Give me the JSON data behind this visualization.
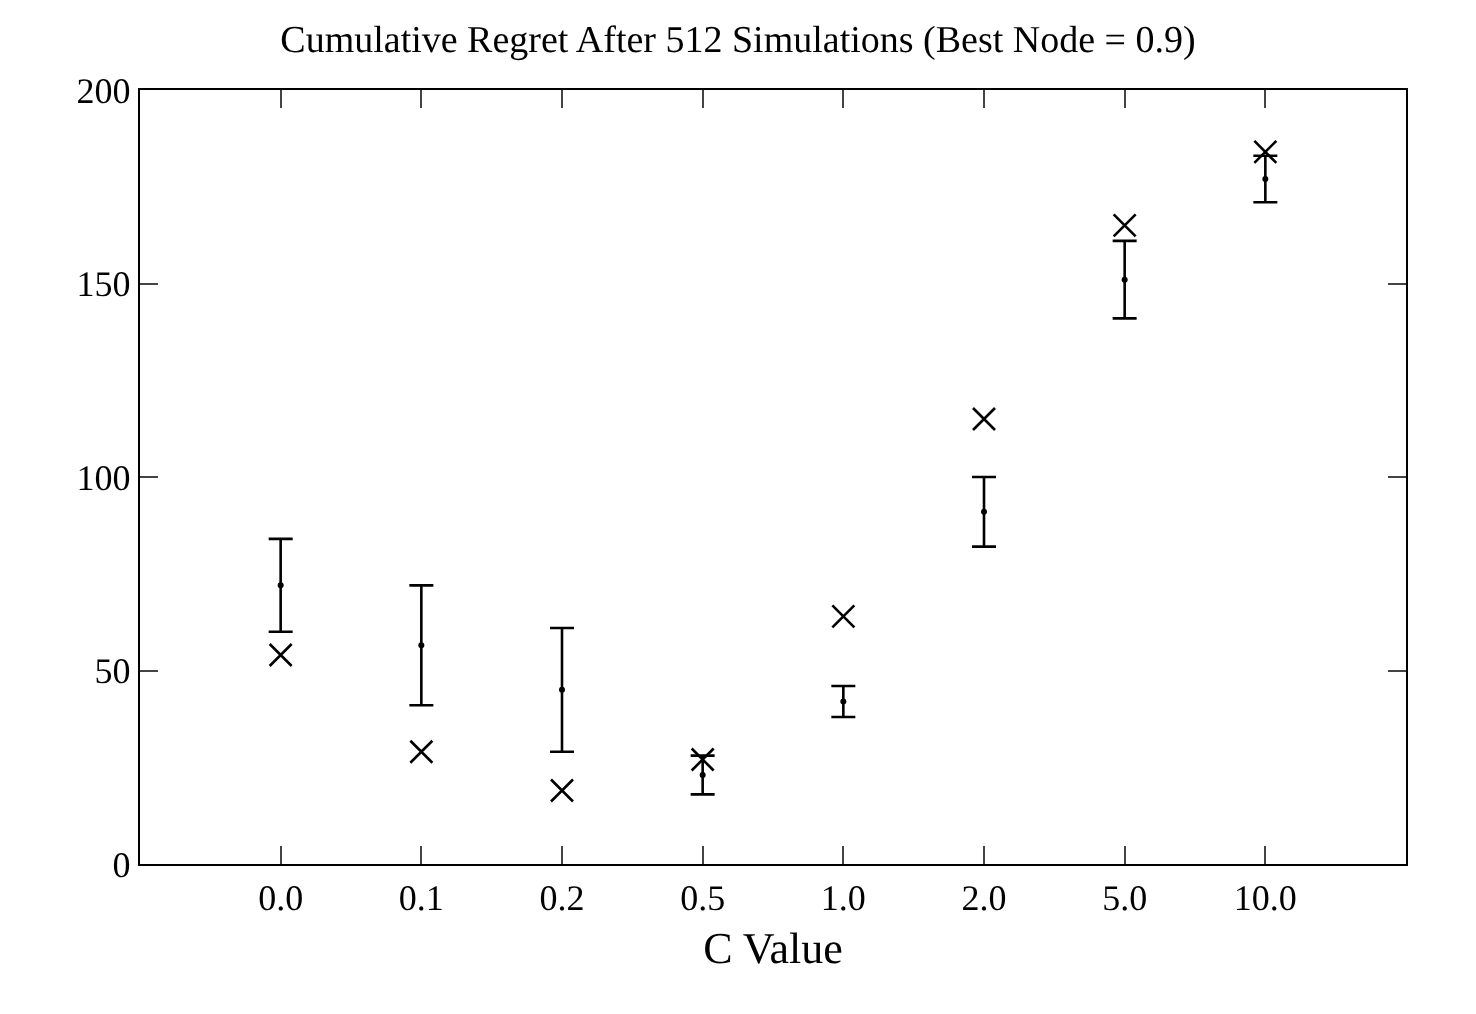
{
  "chart_data": {
    "type": "scatter",
    "title": "Cumulative Regret After 512 Simulations (Best Node = 0.9)",
    "xlabel": "C Value",
    "categories": [
      "0.0",
      "0.1",
      "0.2",
      "0.5",
      "1.0",
      "2.0",
      "5.0",
      "10.0"
    ],
    "ylim": [
      0,
      200
    ],
    "yticks": [
      0,
      50,
      100,
      150,
      200
    ],
    "series": [
      {
        "color": "#000000",
        "marker": "cross",
        "values": [
          54,
          29,
          19,
          27,
          64,
          115,
          165,
          184
        ]
      },
      {
        "color": "#000000",
        "marker": "circle",
        "values": [
          72,
          56.5,
          45,
          23,
          42,
          91,
          151,
          177
        ],
        "errors": [
          [
            60,
            84
          ],
          [
            41,
            72
          ],
          [
            29,
            61
          ],
          [
            18,
            28
          ],
          [
            38,
            46
          ],
          [
            82,
            100
          ],
          [
            141,
            161
          ],
          [
            171,
            183
          ]
        ]
      }
    ]
  }
}
